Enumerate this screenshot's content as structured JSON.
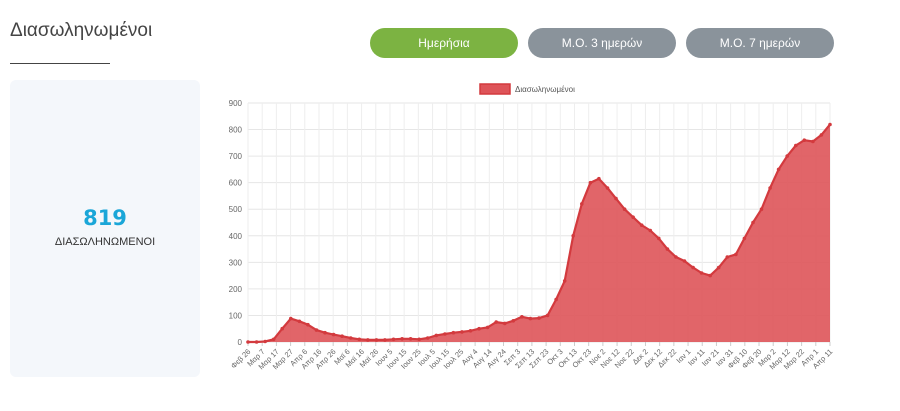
{
  "header": {
    "title": "Διασωληνωμένοι"
  },
  "tabs": [
    {
      "label": "Ημερήσια",
      "active": true
    },
    {
      "label": "Μ.Ο. 3 ημερών",
      "active": false
    },
    {
      "label": "Μ.Ο. 7 ημερών",
      "active": false
    }
  ],
  "stat": {
    "value": "819",
    "label": "ΔΙΑΣΩΛΗΝΩΜΕΝΟΙ"
  },
  "colors": {
    "series_line": "#d33a3e",
    "series_fill": "#de5459",
    "active_tab": "#7cb342",
    "inactive_tab": "#8a939b",
    "stat_value": "#1aa6d8"
  },
  "chart_data": {
    "type": "area",
    "legend_position": "top",
    "grid": true,
    "ylim": [
      0,
      900
    ],
    "yticks": [
      0,
      100,
      200,
      300,
      400,
      500,
      600,
      700,
      800,
      900
    ],
    "x_tick_labels": [
      "Φεβ 26",
      "Μαρ 7",
      "Μαρ 17",
      "Μαρ 27",
      "Απρ 6",
      "Απρ 16",
      "Απρ 26",
      "Μαϊ 6",
      "Μαϊ 16",
      "Μαϊ 26",
      "Ιουν 5",
      "Ιουν 15",
      "Ιουν 25",
      "Ιουλ 5",
      "Ιουλ 15",
      "Ιουλ 25",
      "Αυγ 4",
      "Αυγ 14",
      "Αυγ 24",
      "Σεπ 3",
      "Σεπ 13",
      "Σεπ 23",
      "Οκτ 3",
      "Οκτ 13",
      "Οκτ 23",
      "Νοε 2",
      "Νοε 12",
      "Νοε 22",
      "Δεκ 2",
      "Δεκ 12",
      "Δεκ 22",
      "Ιαν 1",
      "Ιαν 11",
      "Ιαν 21",
      "Ιαν 31",
      "Φεβ 10",
      "Φεβ 20",
      "Μαρ 2",
      "Μαρ 12",
      "Μαρ 22",
      "Απρ 1",
      "Απρ 11"
    ],
    "series": [
      {
        "name": "Διασωληνωμένοι",
        "values": [
          0,
          0,
          2,
          10,
          50,
          88,
          78,
          65,
          45,
          35,
          28,
          22,
          15,
          10,
          8,
          8,
          8,
          10,
          12,
          12,
          10,
          15,
          25,
          30,
          35,
          38,
          42,
          50,
          55,
          75,
          70,
          80,
          95,
          88,
          90,
          100,
          160,
          230,
          400,
          520,
          600,
          615,
          580,
          540,
          500,
          470,
          440,
          420,
          390,
          350,
          320,
          305,
          280,
          260,
          250,
          280,
          320,
          330,
          390,
          450,
          500,
          580,
          650,
          700,
          740,
          760,
          755,
          780,
          819
        ]
      }
    ]
  }
}
